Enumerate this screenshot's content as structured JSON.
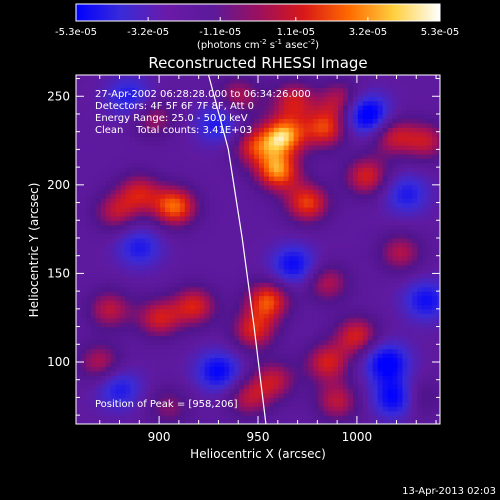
{
  "colorbar": {
    "ticks": [
      "-5.3e-05",
      "-3.2e-05",
      "-1.1e-05",
      "1.1e-05",
      "3.2e-05",
      "5.3e-05"
    ],
    "tick_values": [
      -5.3e-05,
      -3.2e-05,
      -1.1e-05,
      1.1e-05,
      3.2e-05,
      5.3e-05
    ],
    "range": [
      -5.3e-05,
      5.3e-05
    ],
    "units_pre": "(photons cm",
    "units_sup1": "-2",
    "units_mid": " s",
    "units_sup2": "-1",
    "units_post": " asec",
    "units_sup3": "-2",
    "units_close": ")",
    "colors": [
      "#0000ff",
      "#3a2bd8",
      "#6a1aa8",
      "#5b1a9a",
      "#9a1060",
      "#d81818",
      "#ff6a00",
      "#ffd040",
      "#ffffff"
    ]
  },
  "annotations": {
    "time_range": "27-Apr-2002 06:28:28.000 to 06:34:26.000",
    "detectors": "Detectors: 4F 5F 6F 7F 8F, Att 0",
    "energy": "Energy Range: 25.0 - 50.0 keV",
    "clean": "Clean    Total counts: 3.41E+03",
    "peak": "Position of Peak = [958,206]",
    "footer_date": "13-Apr-2013 02:03"
  },
  "chart_data": {
    "type": "heatmap",
    "title": "Reconstructed RHESSI Image",
    "xlabel": "Heliocentric X (arcsec)",
    "ylabel": "Heliocentric Y (arcsec)",
    "xlim": [
      858,
      1042
    ],
    "ylim": [
      65,
      262
    ],
    "xticks": [
      900,
      950,
      1000
    ],
    "yticks": [
      100,
      150,
      200,
      250
    ],
    "peak": [
      958,
      206
    ],
    "limb_curve": [
      [
        925,
        262
      ],
      [
        935,
        220
      ],
      [
        942,
        170
      ],
      [
        948,
        120
      ],
      [
        954,
        65
      ]
    ],
    "blobs": [
      {
        "x": 963,
        "y": 228,
        "value": 5.3e-05
      },
      {
        "x": 960,
        "y": 208,
        "value": 5e-05
      },
      {
        "x": 975,
        "y": 190,
        "value": 4.2e-05
      },
      {
        "x": 948,
        "y": 222,
        "value": 3.5e-05
      },
      {
        "x": 984,
        "y": 232,
        "value": 4e-05
      },
      {
        "x": 992,
        "y": 248,
        "value": 3e-05
      },
      {
        "x": 968,
        "y": 248,
        "value": 3.3e-05
      },
      {
        "x": 908,
        "y": 188,
        "value": 4.8e-05
      },
      {
        "x": 890,
        "y": 196,
        "value": 3.2e-05
      },
      {
        "x": 878,
        "y": 185,
        "value": 2.8e-05
      },
      {
        "x": 897,
        "y": 238,
        "value": 2.5e-05
      },
      {
        "x": 940,
        "y": 250,
        "value": 2.8e-05
      },
      {
        "x": 918,
        "y": 132,
        "value": 3.6e-05
      },
      {
        "x": 900,
        "y": 125,
        "value": 3.4e-05
      },
      {
        "x": 875,
        "y": 130,
        "value": 3e-05
      },
      {
        "x": 870,
        "y": 100,
        "value": 2.8e-05
      },
      {
        "x": 955,
        "y": 135,
        "value": 4.4e-05
      },
      {
        "x": 948,
        "y": 118,
        "value": 3.6e-05
      },
      {
        "x": 958,
        "y": 90,
        "value": 3e-05
      },
      {
        "x": 945,
        "y": 80,
        "value": 2.8e-05
      },
      {
        "x": 1000,
        "y": 115,
        "value": 3.6e-05
      },
      {
        "x": 985,
        "y": 100,
        "value": 3.5e-05
      },
      {
        "x": 990,
        "y": 78,
        "value": 3e-05
      },
      {
        "x": 985,
        "y": 145,
        "value": 2.8e-05
      },
      {
        "x": 1022,
        "y": 162,
        "value": 2.8e-05
      },
      {
        "x": 1005,
        "y": 205,
        "value": 3.6e-05
      },
      {
        "x": 1018,
        "y": 228,
        "value": 3.2e-05
      },
      {
        "x": 1035,
        "y": 225,
        "value": 3e-05
      },
      {
        "x": 1030,
        "y": 80,
        "value": 2.5e-05
      },
      {
        "x": 905,
        "y": 75,
        "value": 2e-05
      },
      {
        "x": 1005,
        "y": 240,
        "value": -5.3e-05
      },
      {
        "x": 1020,
        "y": 80,
        "value": -4.8e-05
      },
      {
        "x": 1015,
        "y": 100,
        "value": -4.5e-05
      },
      {
        "x": 930,
        "y": 95,
        "value": -4e-05
      },
      {
        "x": 968,
        "y": 155,
        "value": -3.8e-05
      },
      {
        "x": 885,
        "y": 250,
        "value": -3e-05
      },
      {
        "x": 930,
        "y": 235,
        "value": -3.2e-05
      },
      {
        "x": 890,
        "y": 165,
        "value": -3e-05
      },
      {
        "x": 1035,
        "y": 135,
        "value": -3.5e-05
      },
      {
        "x": 1025,
        "y": 195,
        "value": -3e-05
      },
      {
        "x": 880,
        "y": 85,
        "value": -3e-05
      }
    ]
  }
}
